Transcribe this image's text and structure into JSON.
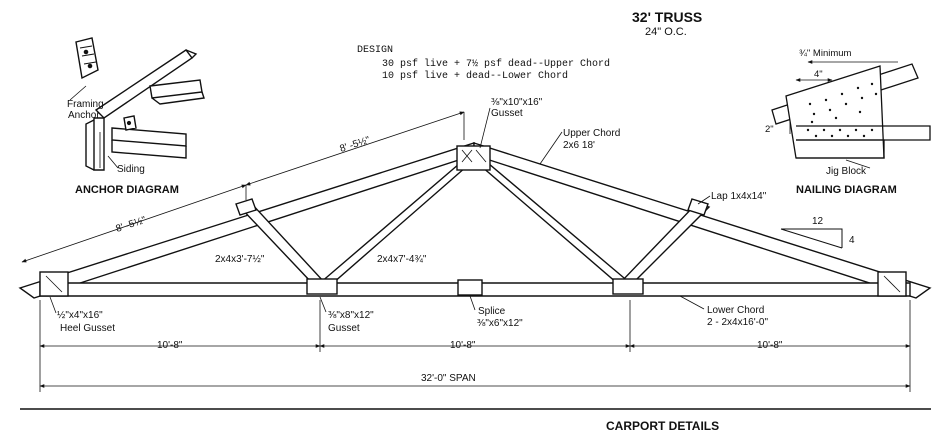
{
  "title": "32' TRUSS",
  "spacing": "24\" O.C.",
  "design": {
    "heading": "DESIGN",
    "line1": "30 psf live + 7½ psf dead--Upper Chord",
    "line2": "10 psf live + dead--Lower Chord"
  },
  "anchor_diagram": {
    "caption": "ANCHOR DIAGRAM",
    "label_framing": "Framing",
    "label_anchor": "Anchor",
    "label_siding": "Siding"
  },
  "nailing_diagram": {
    "caption": "NAILING DIAGRAM",
    "min_label": "¾\" Minimum",
    "dim_4": "4\"",
    "dim_2": "2\"",
    "jig_label": "Jig Block"
  },
  "truss": {
    "top_gusset": "⅜\"x10\"x16\"",
    "top_gusset_word": "Gusset",
    "upper_chord_1": "Upper Chord",
    "upper_chord_2": "2x6 18'",
    "left_rafter_dim_upper": "8' -5½\"",
    "left_rafter_dim_lower": "8' -5½\"",
    "lap_label": "Lap 1x4x14\"",
    "web_short": "2x4x3'-7½\"",
    "web_long": "2x4x7'-4¾\"",
    "pitch_run": "12",
    "pitch_rise": "4",
    "heel_gusset_1": "½\"x4\"x16\"",
    "heel_gusset_2": "Heel Gusset",
    "panel_gusset_1": "⅜\"x8\"x12\"",
    "panel_gusset_2": "Gusset",
    "splice_1": "Splice",
    "splice_2": "⅜\"x6\"x12\"",
    "lower_chord_1": "Lower Chord",
    "lower_chord_2": "2 - 2x4x16'-0\"",
    "dim_left": "10'-8\"",
    "dim_mid": "10'-8\"",
    "dim_right": "10'-8\"",
    "span": "32'-0\" SPAN"
  },
  "footer": "CARPORT DETAILS"
}
